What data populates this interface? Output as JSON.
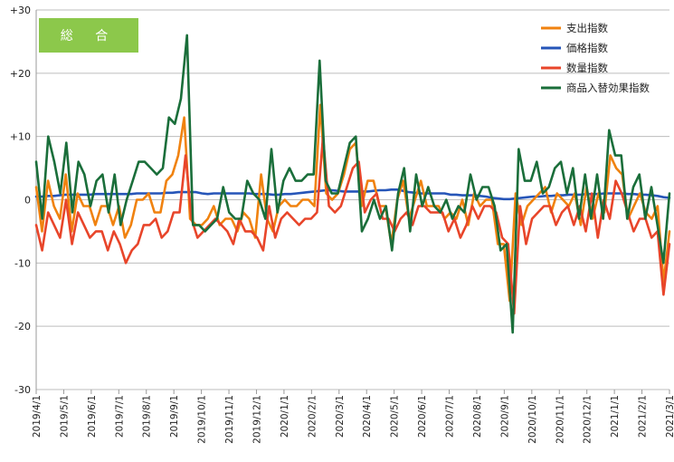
{
  "chart_data": {
    "type": "line",
    "title": "",
    "badge": "総 合",
    "xlabel": "",
    "ylabel": "",
    "ylim": [
      -30,
      30
    ],
    "y_ticks": [
      30,
      20,
      10,
      0,
      -10,
      -20,
      -30
    ],
    "y_tick_labels": [
      "+30",
      "+20",
      "+10",
      "0",
      "-10",
      "-20",
      "-30"
    ],
    "x_tick_labels": [
      "2019/4/1",
      "2019/5/1",
      "2019/6/1",
      "2019/7/1",
      "2019/8/1",
      "2019/9/1",
      "2019/10/1",
      "2019/11/1",
      "2019/12/1",
      "2020/1/1",
      "2020/2/1",
      "2020/3/1",
      "2020/4/1",
      "2020/5/1",
      "2020/6/1",
      "2020/7/1",
      "2020/8/1",
      "2020/9/1",
      "2020/10/1",
      "2020/11/1",
      "2020/12/1",
      "2021/1/1",
      "2021/2/1",
      "2021/3/1"
    ],
    "grid": "horizontal",
    "legend_position": "top-right",
    "series": [
      {
        "name": "支出指数",
        "color": "#F0820F",
        "values": [
          2,
          -5,
          3,
          -1,
          -3,
          4,
          -5,
          1,
          -1,
          -1,
          -4,
          -1,
          -1,
          -4,
          -1,
          -6,
          -4,
          0,
          0,
          1,
          -2,
          -2,
          3,
          4,
          7,
          13,
          -3,
          -4,
          -4,
          -3,
          -1,
          -4,
          -3,
          -3,
          -5,
          -2,
          -3,
          -6,
          4,
          -3,
          -5,
          -1,
          0,
          -1,
          -1,
          0,
          0,
          -1,
          15,
          1,
          0,
          1,
          4,
          8,
          9,
          -1,
          3,
          3,
          -1,
          -1,
          -7,
          0,
          3,
          -3,
          0,
          3,
          -1,
          -1,
          -1,
          -3,
          -2,
          -3,
          0,
          -4,
          1,
          -1,
          0,
          0,
          -7,
          -7,
          -16,
          1,
          -4,
          -1,
          0,
          1,
          2,
          -2,
          1,
          0,
          -1,
          1,
          -4,
          2,
          -3,
          1,
          -2,
          7,
          5,
          4,
          -3,
          -1,
          1,
          -2,
          -3,
          -1,
          -13,
          -5
        ]
      },
      {
        "name": "価格指数",
        "color": "#2655B8",
        "values": [
          0.5,
          0.5,
          0.6,
          0.6,
          0.7,
          0.8,
          0.8,
          0.8,
          0.8,
          0.8,
          0.9,
          0.9,
          0.9,
          0.9,
          0.9,
          0.9,
          0.9,
          1.0,
          1.0,
          1.0,
          1.0,
          1.0,
          1.1,
          1.1,
          1.2,
          1.2,
          1.2,
          1.2,
          1.0,
          0.9,
          1.0,
          1.0,
          1.0,
          1.0,
          1.0,
          1.0,
          1.0,
          0.9,
          0.9,
          0.9,
          0.8,
          0.8,
          0.9,
          0.9,
          1.0,
          1.1,
          1.2,
          1.3,
          1.4,
          1.5,
          1.5,
          1.4,
          1.3,
          1.3,
          1.3,
          1.3,
          1.3,
          1.4,
          1.5,
          1.5,
          1.6,
          1.6,
          1.4,
          1.2,
          1.1,
          1.0,
          1.0,
          1.0,
          1.0,
          1.0,
          0.8,
          0.8,
          0.7,
          0.7,
          0.7,
          0.6,
          0.5,
          0.3,
          0.2,
          0.1,
          0.1,
          0.2,
          0.3,
          0.4,
          0.5,
          0.5,
          0.6,
          0.6,
          0.7,
          0.7,
          0.8,
          0.8,
          0.8,
          0.9,
          0.9,
          0.9,
          1.0,
          1.0,
          1.0,
          1.0,
          0.9,
          0.9,
          0.8,
          0.8,
          0.7,
          0.6,
          0.4,
          0.3
        ]
      },
      {
        "name": "数量指数",
        "color": "#E8452A",
        "values": [
          -4,
          -8,
          -2,
          -4,
          -6,
          0,
          -7,
          -2,
          -4,
          -6,
          -5,
          -5,
          -8,
          -5,
          -7,
          -10,
          -8,
          -7,
          -4,
          -4,
          -3,
          -6,
          -5,
          -2,
          -2,
          7,
          -3,
          -6,
          -5,
          -4,
          -3,
          -4,
          -5,
          -7,
          -3,
          -5,
          -5,
          -6,
          -8,
          -1,
          -6,
          -3,
          -2,
          -3,
          -4,
          -3,
          -3,
          -2,
          10,
          -1,
          -2,
          -1,
          2,
          5,
          6,
          -2,
          0,
          1,
          -3,
          -3,
          -5,
          -3,
          -2,
          -4,
          -1,
          -1,
          -2,
          -2,
          -2,
          -5,
          -3,
          -6,
          -4,
          -1,
          -3,
          -1,
          -1,
          -2,
          -6,
          -7,
          -18,
          -1,
          -7,
          -3,
          -2,
          -1,
          -1,
          -4,
          -2,
          -1,
          -4,
          -1,
          -5,
          1,
          -6,
          0,
          -3,
          3,
          1,
          -2,
          -5,
          -3,
          -3,
          -6,
          -5,
          -15,
          -7
        ]
      },
      {
        "name": "商品入替効果指数",
        "color": "#1A6E3A",
        "values": [
          6,
          -3,
          10,
          6,
          1,
          9,
          -2,
          6,
          4,
          -1,
          3,
          4,
          -2,
          4,
          -4,
          0,
          3,
          6,
          6,
          5,
          4,
          5,
          13,
          12,
          16,
          26,
          -4,
          -4,
          -5,
          -4,
          -3,
          2,
          -2,
          -3,
          -3,
          3,
          1,
          0,
          -3,
          8,
          -2,
          3,
          5,
          3,
          3,
          4,
          4,
          22,
          3,
          1,
          1,
          5,
          9,
          10,
          -5,
          -3,
          0,
          -3,
          -1,
          -8,
          1,
          5,
          -5,
          4,
          -1,
          2,
          -1,
          -2,
          0,
          -3,
          -1,
          -2,
          4,
          0,
          2,
          2,
          -1,
          -8,
          -7,
          -21,
          8,
          3,
          3,
          6,
          1,
          2,
          5,
          6,
          1,
          5,
          -3,
          4,
          -3,
          4,
          -3,
          11,
          7,
          7,
          -3,
          2,
          4,
          -3,
          2,
          -4,
          -10,
          1
        ]
      }
    ]
  }
}
